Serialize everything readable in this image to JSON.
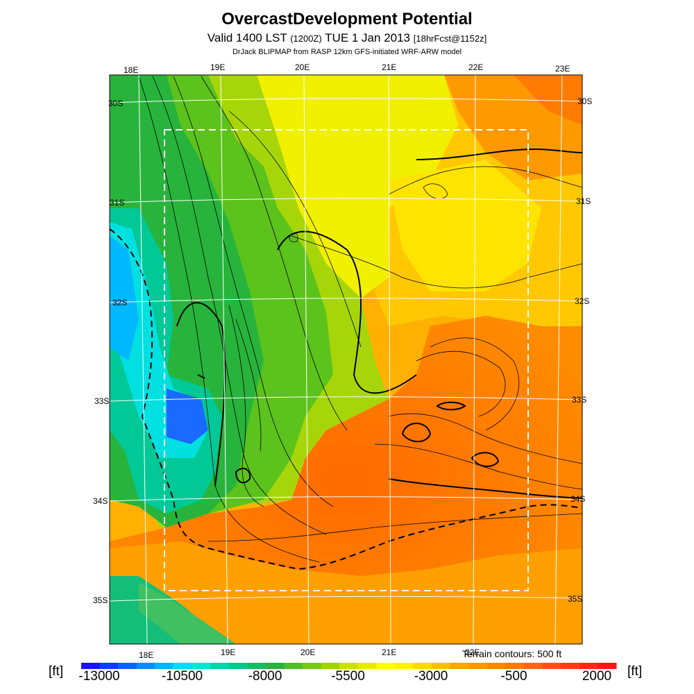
{
  "header": {
    "title": "OvercastDevelopment Potential",
    "subtitle_main": "Valid 1400 LST",
    "subtitle_zulu": "(1200Z)",
    "subtitle_date": "TUE 1 Jan 2013",
    "subtitle_fcst": "[18hrFcst@1152z]",
    "credit": "DrJack BLIPMAP from RASP 12km GFS-initiated WRF-ARW model"
  },
  "axes": {
    "lon_top": [
      "18E",
      "19E",
      "20E",
      "21E",
      "22E",
      "23E"
    ],
    "lon_bottom": [
      "18E",
      "19E",
      "20E",
      "21E",
      "22E"
    ],
    "lat_left": [
      "30S",
      "31S",
      "32S",
      "33S",
      "34S",
      "35S"
    ],
    "lat_right": [
      "30S",
      "31S",
      "32S",
      "33S",
      "34S",
      "35S"
    ]
  },
  "legend": {
    "terrain_note": "Terrain contours: 500 ft",
    "unit_left": "[ft]",
    "unit_right": "[ft]",
    "tick_labels": [
      "-13000",
      "-10500",
      "-8000",
      "-5500",
      "-3000",
      "-500",
      "2000"
    ],
    "colors": [
      "#1a14e8",
      "#0a3cff",
      "#0a64ff",
      "#0a8cff",
      "#00b4ff",
      "#00dcff",
      "#00e6d2",
      "#00d2aa",
      "#00c88c",
      "#14be64",
      "#28b43c",
      "#50be28",
      "#78c814",
      "#a0d20a",
      "#c8e100",
      "#e6eb00",
      "#ffff00",
      "#fff000",
      "#ffd700",
      "#ffbe00",
      "#ffa500",
      "#ff9600",
      "#ff8700",
      "#ff7800",
      "#ff6414",
      "#ff5014",
      "#ff3c14",
      "#ff2814",
      "#ff1414"
    ]
  }
}
